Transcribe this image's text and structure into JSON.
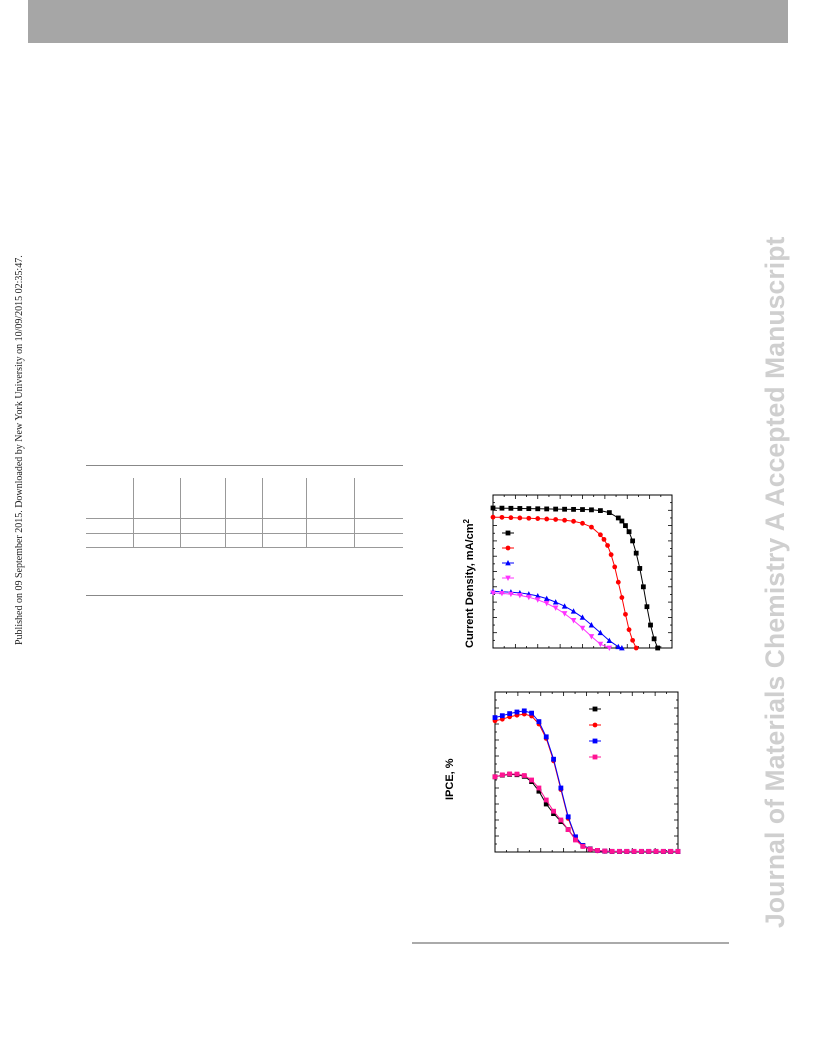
{
  "header": {
    "bar_color": "#a6a6a6"
  },
  "side_stamp": {
    "text": "Published on 09 September 2015. Downloaded by New York University on 10/09/2015 02:35:47."
  },
  "watermark": {
    "text": "Journal of Materials Chemistry A Accepted Manuscript",
    "color": "#cfcfcf"
  },
  "table": {
    "columns": 7,
    "rows": 3
  },
  "chart_data": [
    {
      "type": "line",
      "title": "",
      "ylabel": "Current Density, mA/cm",
      "ylabel_superscript": "2",
      "xlabel": "",
      "grid": false,
      "legend_placement": "left",
      "xlim": [
        0,
        1
      ],
      "ylim": [
        0,
        1
      ],
      "series": [
        {
          "color": "#000000",
          "marker": "square",
          "x": [
            0.0,
            0.05,
            0.1,
            0.15,
            0.2,
            0.25,
            0.3,
            0.35,
            0.4,
            0.45,
            0.5,
            0.55,
            0.6,
            0.65,
            0.7,
            0.72,
            0.74,
            0.76,
            0.78,
            0.8,
            0.82,
            0.84,
            0.86,
            0.88,
            0.9,
            0.92
          ],
          "y": [
            0.915,
            0.914,
            0.913,
            0.912,
            0.911,
            0.91,
            0.909,
            0.908,
            0.907,
            0.906,
            0.905,
            0.903,
            0.898,
            0.885,
            0.85,
            0.83,
            0.8,
            0.76,
            0.7,
            0.62,
            0.52,
            0.4,
            0.27,
            0.15,
            0.06,
            0.0
          ]
        },
        {
          "color": "#ff0000",
          "marker": "circle",
          "x": [
            0.0,
            0.05,
            0.1,
            0.15,
            0.2,
            0.25,
            0.3,
            0.35,
            0.4,
            0.45,
            0.5,
            0.55,
            0.6,
            0.62,
            0.64,
            0.66,
            0.68,
            0.7,
            0.72,
            0.74,
            0.76,
            0.78,
            0.8
          ],
          "y": [
            0.855,
            0.854,
            0.852,
            0.85,
            0.848,
            0.846,
            0.843,
            0.84,
            0.835,
            0.828,
            0.815,
            0.79,
            0.74,
            0.71,
            0.67,
            0.61,
            0.53,
            0.43,
            0.33,
            0.22,
            0.12,
            0.05,
            0.0
          ]
        },
        {
          "color": "#0000ff",
          "marker": "triangle-up",
          "x": [
            0.0,
            0.05,
            0.1,
            0.15,
            0.2,
            0.25,
            0.3,
            0.35,
            0.4,
            0.45,
            0.5,
            0.55,
            0.6,
            0.65,
            0.7,
            0.72
          ],
          "y": [
            0.37,
            0.368,
            0.365,
            0.36,
            0.352,
            0.34,
            0.323,
            0.3,
            0.273,
            0.24,
            0.2,
            0.15,
            0.1,
            0.048,
            0.008,
            0.0
          ]
        },
        {
          "color": "#ff33ff",
          "marker": "triangle-down",
          "x": [
            0.0,
            0.05,
            0.1,
            0.15,
            0.2,
            0.25,
            0.3,
            0.35,
            0.4,
            0.45,
            0.5,
            0.55,
            0.6,
            0.65
          ],
          "y": [
            0.36,
            0.357,
            0.352,
            0.344,
            0.332,
            0.315,
            0.292,
            0.262,
            0.225,
            0.18,
            0.13,
            0.075,
            0.025,
            0.0
          ]
        }
      ]
    },
    {
      "type": "line",
      "title": "",
      "ylabel": "IPCE, %",
      "xlabel": "",
      "grid": false,
      "legend_placement": "top-right",
      "xlim": [
        0,
        1
      ],
      "ylim": [
        0,
        1
      ],
      "series": [
        {
          "color": "#000000",
          "marker": "square",
          "x": [
            0.0,
            0.04,
            0.08,
            0.12,
            0.16,
            0.2,
            0.24,
            0.28,
            0.32,
            0.36,
            0.4,
            0.44,
            0.48,
            0.52,
            0.56,
            0.6,
            0.64,
            0.68,
            0.72,
            0.76,
            0.8,
            0.84,
            0.88,
            0.92,
            0.96,
            1.0
          ],
          "y": [
            0.47,
            0.48,
            0.485,
            0.483,
            0.473,
            0.44,
            0.38,
            0.3,
            0.24,
            0.19,
            0.14,
            0.08,
            0.04,
            0.02,
            0.01,
            0.005,
            0.003,
            0.003,
            0.003,
            0.003,
            0.003,
            0.003,
            0.003,
            0.003,
            0.003,
            0.003
          ]
        },
        {
          "color": "#ff0000",
          "marker": "circle",
          "x": [
            0.0,
            0.04,
            0.08,
            0.12,
            0.16,
            0.2,
            0.24,
            0.28,
            0.32,
            0.36,
            0.4,
            0.44,
            0.48,
            0.52,
            0.56,
            0.6,
            0.64,
            0.68,
            0.72,
            0.76,
            0.8,
            0.84,
            0.88,
            0.92,
            0.96,
            1.0
          ],
          "y": [
            0.82,
            0.83,
            0.845,
            0.855,
            0.862,
            0.85,
            0.8,
            0.71,
            0.57,
            0.39,
            0.21,
            0.09,
            0.035,
            0.015,
            0.007,
            0.004,
            0.003,
            0.003,
            0.003,
            0.003,
            0.003,
            0.003,
            0.003,
            0.003,
            0.003,
            0.003
          ]
        },
        {
          "color": "#0000ff",
          "marker": "square",
          "x": [
            0.0,
            0.04,
            0.08,
            0.12,
            0.16,
            0.2,
            0.24,
            0.28,
            0.32,
            0.36,
            0.4,
            0.44,
            0.48,
            0.52,
            0.56,
            0.6,
            0.64,
            0.68,
            0.72,
            0.76,
            0.8,
            0.84,
            0.88,
            0.92,
            0.96,
            1.0
          ],
          "y": [
            0.84,
            0.852,
            0.865,
            0.875,
            0.882,
            0.868,
            0.815,
            0.72,
            0.58,
            0.4,
            0.22,
            0.095,
            0.04,
            0.018,
            0.009,
            0.005,
            0.004,
            0.004,
            0.004,
            0.004,
            0.004,
            0.004,
            0.004,
            0.004,
            0.004,
            0.004
          ]
        },
        {
          "color": "#ff1493",
          "marker": "square",
          "x": [
            0.0,
            0.04,
            0.08,
            0.12,
            0.16,
            0.2,
            0.24,
            0.28,
            0.32,
            0.36,
            0.4,
            0.44,
            0.48,
            0.52,
            0.56,
            0.6,
            0.64,
            0.68,
            0.72,
            0.76,
            0.8,
            0.84,
            0.88,
            0.92,
            0.96,
            1.0
          ],
          "y": [
            0.47,
            0.482,
            0.488,
            0.487,
            0.478,
            0.45,
            0.4,
            0.325,
            0.255,
            0.2,
            0.14,
            0.075,
            0.035,
            0.018,
            0.01,
            0.006,
            0.004,
            0.004,
            0.004,
            0.004,
            0.004,
            0.004,
            0.004,
            0.004,
            0.004,
            0.004
          ]
        }
      ]
    }
  ]
}
